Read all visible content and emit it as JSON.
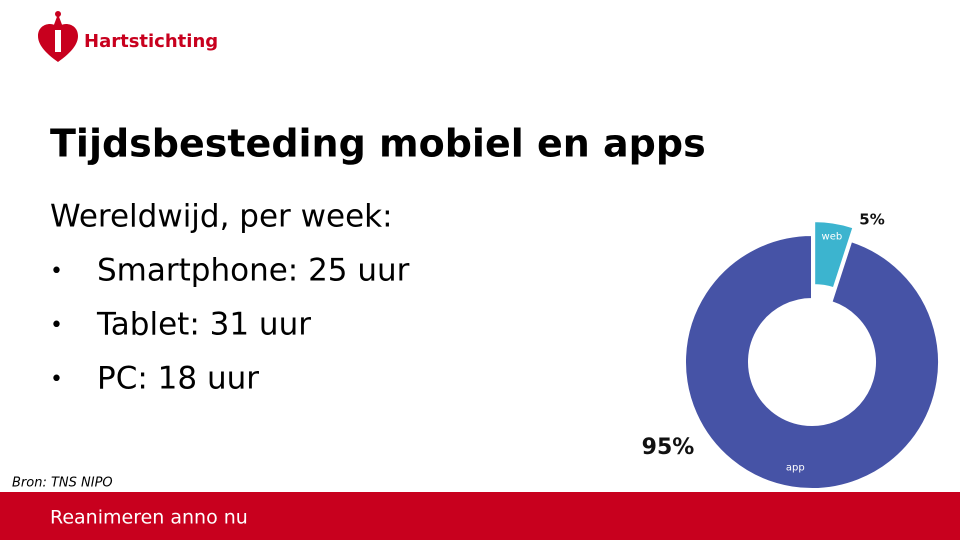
{
  "logo": "Hartstichting",
  "title": "Tijdsbesteding mobiel en apps",
  "subtitle": "Wereldwijd, per week:",
  "bullets": [
    "Smartphone: 25 uur",
    "Tablet: 31 uur",
    "PC: 18 uur"
  ],
  "source": "Bron: TNS NIPO",
  "footer": "Reanimeren anno nu",
  "chart_data": {
    "type": "donut",
    "categories": [
      "web",
      "app"
    ],
    "values": [
      5,
      95
    ],
    "value_labels": [
      "5%",
      "95%"
    ],
    "colors": [
      "#3cb4cf",
      "#4653a6"
    ]
  }
}
